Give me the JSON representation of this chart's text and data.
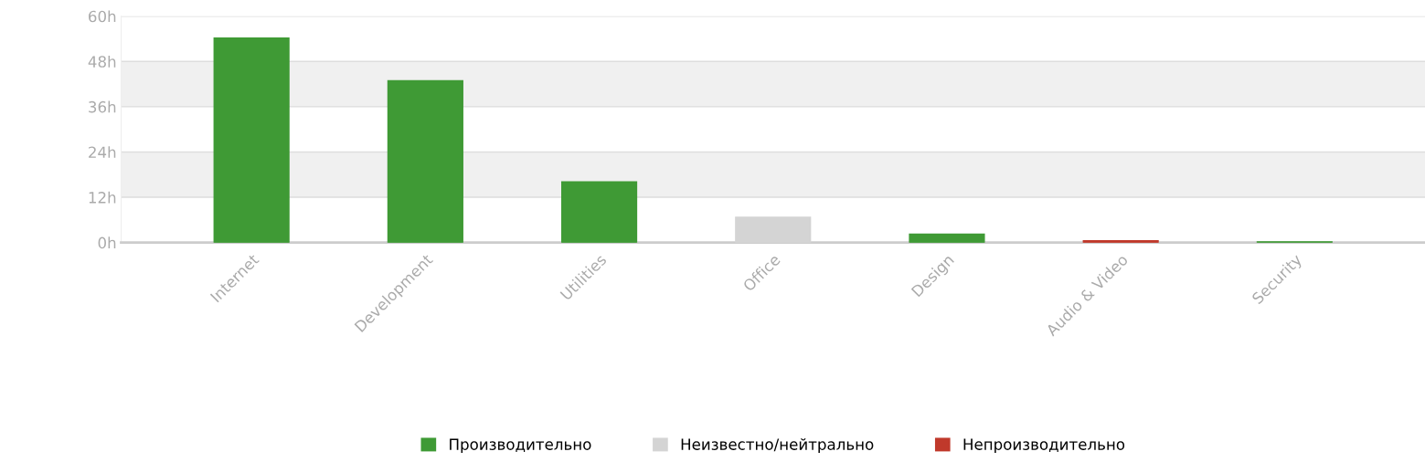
{
  "chart_data": {
    "type": "bar",
    "categories": [
      "Internet",
      "Development",
      "Utilities",
      "Office",
      "Design",
      "Audio & Video",
      "Security"
    ],
    "series": [
      {
        "name": "Производительно",
        "color": "#3f9a35",
        "values": [
          54.2,
          42.9,
          16.1,
          null,
          2.2,
          null,
          0.2
        ]
      },
      {
        "name": "Неизвестно/нейтрально",
        "color": "#d4d4d4",
        "values": [
          null,
          null,
          null,
          6.7,
          null,
          null,
          null
        ]
      },
      {
        "name": "Непроизводительно",
        "color": "#c0392b",
        "values": [
          null,
          null,
          null,
          null,
          null,
          0.5,
          null
        ]
      }
    ],
    "ylim": [
      0,
      60
    ],
    "yticks": [
      {
        "value": 0,
        "label": "0h"
      },
      {
        "value": 12,
        "label": "12h"
      },
      {
        "value": 24,
        "label": "24h"
      },
      {
        "value": 36,
        "label": "36h"
      },
      {
        "value": 48,
        "label": "48h"
      },
      {
        "value": 60,
        "label": "60h"
      }
    ],
    "bands": [
      {
        "axis": "y",
        "from": 12,
        "to": 24,
        "color": "#f0f0f0"
      },
      {
        "axis": "y",
        "from": 36,
        "to": 48,
        "color": "#f0f0f0"
      }
    ],
    "grid": "y",
    "legend": "bottom"
  }
}
